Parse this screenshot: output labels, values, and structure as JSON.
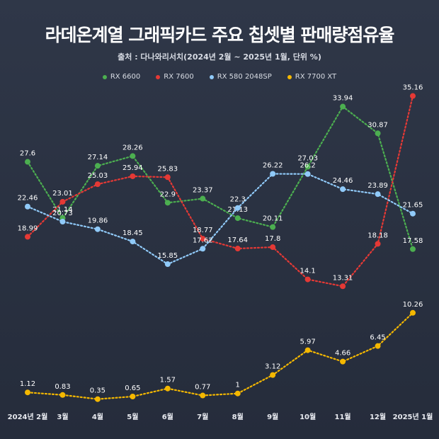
{
  "header": {
    "title": "라데온계열 그래픽카드 주요 칩셋별 판매량점유율",
    "subtitle": "출처 : 다나와리서치(2024년 2월 ~ 2025년 1월, 단위 %)"
  },
  "chart_data": {
    "type": "line",
    "categories": [
      "2024년 2월",
      "3월",
      "4월",
      "5월",
      "6월",
      "7월",
      "8월",
      "9월",
      "10월",
      "11월",
      "12월",
      "2025년 1월"
    ],
    "ylim": [
      0,
      40
    ],
    "grid": false,
    "legend_position": "top-center",
    "series": [
      {
        "name": "RX 6600",
        "color": "#4caf50",
        "values": [
          27.6,
          21.14,
          27.14,
          28.26,
          22.9,
          23.37,
          21.13,
          20.11,
          27.03,
          33.94,
          30.87,
          17.58
        ]
      },
      {
        "name": "RX 7600",
        "color": "#e53935",
        "values": [
          18.99,
          23.01,
          25.03,
          25.94,
          25.83,
          18.77,
          17.64,
          17.8,
          14.1,
          13.31,
          18.18,
          35.16
        ]
      },
      {
        "name": "RX 580 2048SP",
        "color": "#90caf9",
        "values": [
          22.46,
          20.73,
          19.86,
          18.45,
          15.85,
          17.62,
          22.3,
          26.22,
          26.2,
          24.46,
          23.89,
          21.65
        ]
      },
      {
        "name": "RX 7700 XT",
        "color": "#f5b800",
        "values": [
          1.12,
          0.83,
          0.35,
          0.65,
          1.57,
          0.77,
          1,
          3.12,
          5.97,
          4.66,
          6.45,
          10.26
        ]
      }
    ]
  }
}
